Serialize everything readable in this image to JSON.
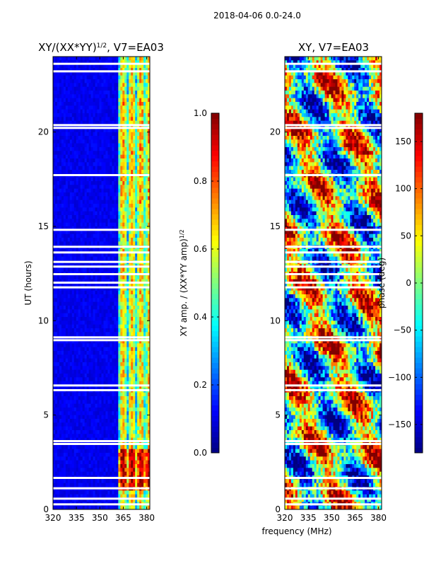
{
  "suptitle": "2018-04-06 0.0-24.0",
  "x_common_label": "frequency (MHz)",
  "chart_data": [
    {
      "type": "heatmap",
      "title": "XY/(XX*YY)",
      "title_sup": "1/2",
      "title_suffix": ", V7=EA03",
      "xlabel": "",
      "ylabel": "UT (hours)",
      "xlim": [
        320,
        382
      ],
      "ylim": [
        0,
        24
      ],
      "xticks": [
        320,
        335,
        350,
        365,
        380
      ],
      "yticks": [
        0,
        5,
        10,
        15,
        20
      ],
      "colorbar": {
        "label": "XY amp. / (XX*YY amp)",
        "label_sup": "1/2",
        "range": [
          0.0,
          1.0
        ],
        "ticks": [
          "0.0",
          "0.2",
          "0.4",
          "0.6",
          "0.8",
          "1.0"
        ],
        "tick_values": [
          0.0,
          0.2,
          0.4,
          0.6,
          0.8,
          1.0
        ]
      },
      "colormap": "jet",
      "masked_rows_hours": [
        0.25,
        0.55,
        1.1,
        1.65,
        3.45,
        3.6,
        6.3,
        6.55,
        8.95,
        9.1,
        11.75,
        12.0,
        12.45,
        12.85,
        13.1,
        13.6,
        13.9,
        14.8,
        17.7,
        20.2,
        20.35,
        23.2,
        23.6
      ]
    },
    {
      "type": "heatmap",
      "title": "XY",
      "title_suffix": ", V7=EA03",
      "xlabel": "frequency (MHz)",
      "ylabel": "",
      "xlim": [
        320,
        382
      ],
      "ylim": [
        0,
        24
      ],
      "xticks": [
        320,
        335,
        350,
        365,
        380
      ],
      "yticks": [
        0,
        5,
        10,
        15,
        20
      ],
      "colorbar": {
        "label": "phase (deg)",
        "range": [
          -180,
          180
        ],
        "ticks": [
          "−150",
          "−100",
          "−50",
          "0",
          "50",
          "100",
          "150"
        ],
        "tick_values": [
          -150,
          -100,
          -50,
          0,
          50,
          100,
          150
        ]
      },
      "colormap": "jet",
      "masked_rows_hours": [
        0.25,
        0.55,
        1.1,
        1.65,
        3.45,
        3.6,
        6.3,
        6.55,
        8.95,
        9.1,
        11.75,
        12.0,
        12.45,
        12.85,
        13.1,
        13.6,
        13.9,
        14.8,
        17.7,
        20.2,
        20.35,
        23.2,
        23.6
      ]
    }
  ]
}
